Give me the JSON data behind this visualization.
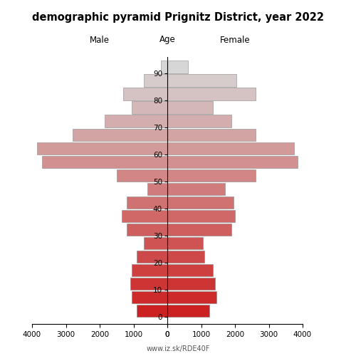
{
  "title": "demographic pyramid Prignitz District, year 2022",
  "label_male": "Male",
  "label_female": "Female",
  "label_age": "Age",
  "footer": "www.iz.sk/RDE40F",
  "ages": [
    0,
    5,
    10,
    15,
    20,
    25,
    30,
    35,
    40,
    45,
    50,
    55,
    60,
    65,
    70,
    75,
    80,
    85,
    90
  ],
  "male_values": [
    900,
    1050,
    1100,
    1050,
    900,
    700,
    1200,
    1350,
    1200,
    600,
    1500,
    3700,
    3850,
    2800,
    1850,
    1050,
    1300,
    700,
    200
  ],
  "female_values": [
    1250,
    1450,
    1400,
    1350,
    1100,
    1050,
    1900,
    2000,
    1950,
    1700,
    2600,
    3850,
    3750,
    2600,
    1900,
    1350,
    2600,
    2050,
    600
  ],
  "xlim": 4000,
  "age_ticks": [
    0,
    10,
    20,
    30,
    40,
    50,
    60,
    70,
    80,
    90
  ],
  "bar_height": 4.6,
  "edgecolor": "#888888",
  "edge_lw": 0.4,
  "color_young": [
    0.8,
    0.13,
    0.13
  ],
  "color_old": [
    0.84,
    0.84,
    0.84
  ],
  "bg_color": "white",
  "title_fontsize": 10.5,
  "tick_fontsize": 7.5,
  "label_fontsize": 8.5,
  "footer_fontsize": 7,
  "footer_color": "#555555",
  "xticks_left": [
    4000,
    3000,
    2000,
    1000,
    0
  ],
  "xticks_right": [
    0,
    1000,
    2000,
    3000,
    4000
  ],
  "ylim_low": -2.5,
  "ylim_high": 96
}
